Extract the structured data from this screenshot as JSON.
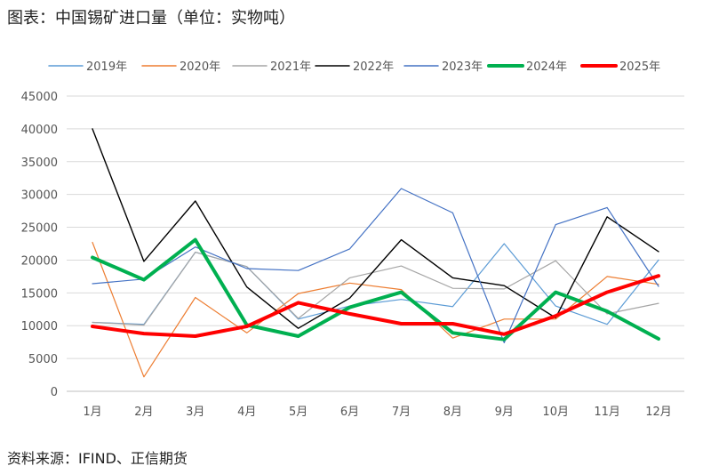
{
  "header": {
    "title": "图表：中国锡矿进口量（单位：实物吨）"
  },
  "footer": {
    "source": "资料来源：IFIND、正信期货"
  },
  "chart_data": {
    "type": "line",
    "title": "图表：中国锡矿进口量（单位：实物吨）",
    "xlabel": "",
    "ylabel": "",
    "categories": [
      "1月",
      "2月",
      "3月",
      "4月",
      "5月",
      "6月",
      "7月",
      "8月",
      "9月",
      "10月",
      "11月",
      "12月"
    ],
    "ylim": [
      0,
      45000
    ],
    "yticks": [
      0,
      5000,
      10000,
      15000,
      20000,
      25000,
      30000,
      35000,
      40000,
      45000
    ],
    "grid": true,
    "legend_position": "top",
    "series": [
      {
        "name": "2019年",
        "color": "#5b9bd5",
        "width": 1.2,
        "values": [
          10500,
          10200,
          21200,
          19000,
          11000,
          13000,
          14000,
          12900,
          22500,
          13000,
          10200,
          20000
        ]
      },
      {
        "name": "2020年",
        "color": "#ed7d31",
        "width": 1.2,
        "values": [
          22700,
          2200,
          14300,
          8900,
          14900,
          16500,
          15500,
          8100,
          11000,
          11000,
          17500,
          16300
        ]
      },
      {
        "name": "2021年",
        "color": "#a5a5a5",
        "width": 1.2,
        "values": [
          10500,
          10100,
          21200,
          19000,
          11100,
          17300,
          19100,
          15700,
          15600,
          19900,
          11800,
          13400
        ]
      },
      {
        "name": "2022年",
        "color": "#000000",
        "width": 1.4,
        "values": [
          40000,
          19800,
          29000,
          15900,
          9600,
          14200,
          23100,
          17300,
          16100,
          11200,
          26600,
          21300
        ]
      },
      {
        "name": "2023年",
        "color": "#4472c4",
        "width": 1.2,
        "values": [
          16400,
          17100,
          22000,
          18700,
          18400,
          21700,
          30900,
          27200,
          7400,
          25400,
          28000,
          16000
        ]
      },
      {
        "name": "2024年",
        "color": "#00b050",
        "width": 4,
        "values": [
          20400,
          17000,
          23100,
          10100,
          8400,
          12800,
          15100,
          8900,
          7900,
          15100,
          12200,
          8000
        ]
      },
      {
        "name": "2025年",
        "color": "#ff0000",
        "width": 4,
        "values": [
          9900,
          8800,
          8400,
          9900,
          13500,
          11800,
          10300,
          10300,
          8700,
          11500,
          15100,
          17600
        ]
      }
    ]
  }
}
